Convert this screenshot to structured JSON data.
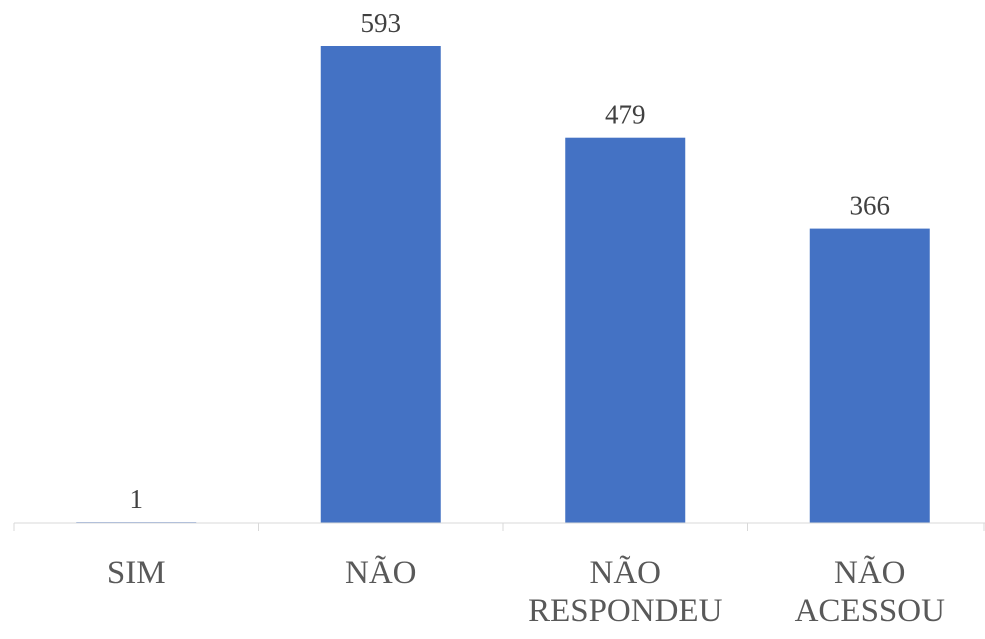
{
  "chart_data": {
    "type": "bar",
    "categories": [
      [
        "SIM"
      ],
      [
        "NÃO"
      ],
      [
        "NÃO",
        "RESPONDEU"
      ],
      [
        "NÃO",
        "ACESSOU"
      ]
    ],
    "values": [
      1,
      593,
      479,
      366
    ],
    "data_labels": [
      "1",
      "593",
      "479",
      "366"
    ],
    "title": "",
    "xlabel": "",
    "ylabel": "",
    "ylim": [
      0,
      593
    ],
    "grid": false,
    "legend": "none",
    "colors": {
      "bar": "#4472C4",
      "axis": "#D9D9D9",
      "data_label": "#404040",
      "category_label": "#595959"
    }
  }
}
